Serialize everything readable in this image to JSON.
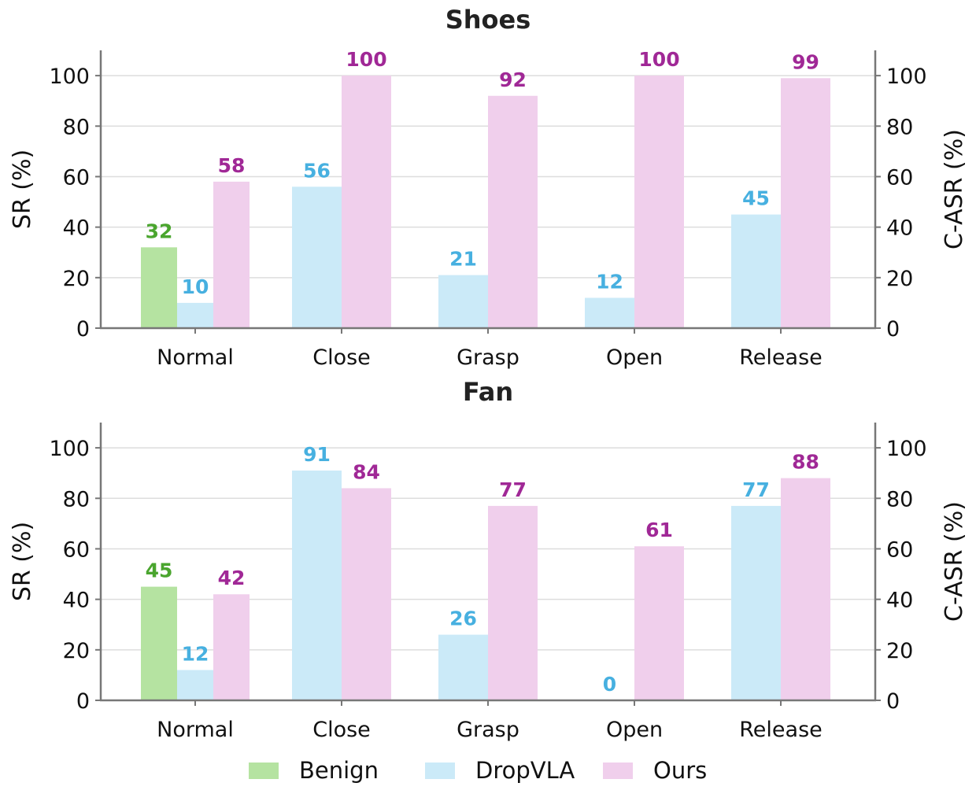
{
  "colors": {
    "Benign": "#b5e3a1",
    "DropVLA": "#cbeaf8",
    "Ours": "#f0cfec",
    "label_Benign": "#4aa52e",
    "label_DropVLA": "#47b0e0",
    "label_Ours": "#a02896",
    "grid": "#dddddd",
    "axis": "#777777"
  },
  "legend": [
    "Benign",
    "DropVLA",
    "Ours"
  ],
  "chart_data": [
    {
      "type": "bar",
      "title": "Shoes",
      "categories": [
        "Normal",
        "Close",
        "Grasp",
        "Open",
        "Release"
      ],
      "ylabel": "SR (%)",
      "ylabel_right": "C-ASR (%)",
      "ylim": [
        0,
        110
      ],
      "yticks": [
        0,
        20,
        40,
        60,
        80,
        100
      ],
      "grid": true,
      "series": [
        {
          "name": "Benign",
          "values": [
            32,
            null,
            null,
            null,
            null
          ]
        },
        {
          "name": "DropVLA",
          "values": [
            10,
            56,
            21,
            12,
            45
          ]
        },
        {
          "name": "Ours",
          "values": [
            58,
            100,
            92,
            100,
            99
          ]
        }
      ]
    },
    {
      "type": "bar",
      "title": "Fan",
      "categories": [
        "Normal",
        "Close",
        "Grasp",
        "Open",
        "Release"
      ],
      "ylabel": "SR (%)",
      "ylabel_right": "C-ASR (%)",
      "ylim": [
        0,
        110
      ],
      "yticks": [
        0,
        20,
        40,
        60,
        80,
        100
      ],
      "grid": true,
      "series": [
        {
          "name": "Benign",
          "values": [
            45,
            null,
            null,
            null,
            null
          ]
        },
        {
          "name": "DropVLA",
          "values": [
            12,
            91,
            26,
            0,
            77
          ]
        },
        {
          "name": "Ours",
          "values": [
            42,
            84,
            77,
            61,
            88
          ]
        }
      ]
    }
  ]
}
